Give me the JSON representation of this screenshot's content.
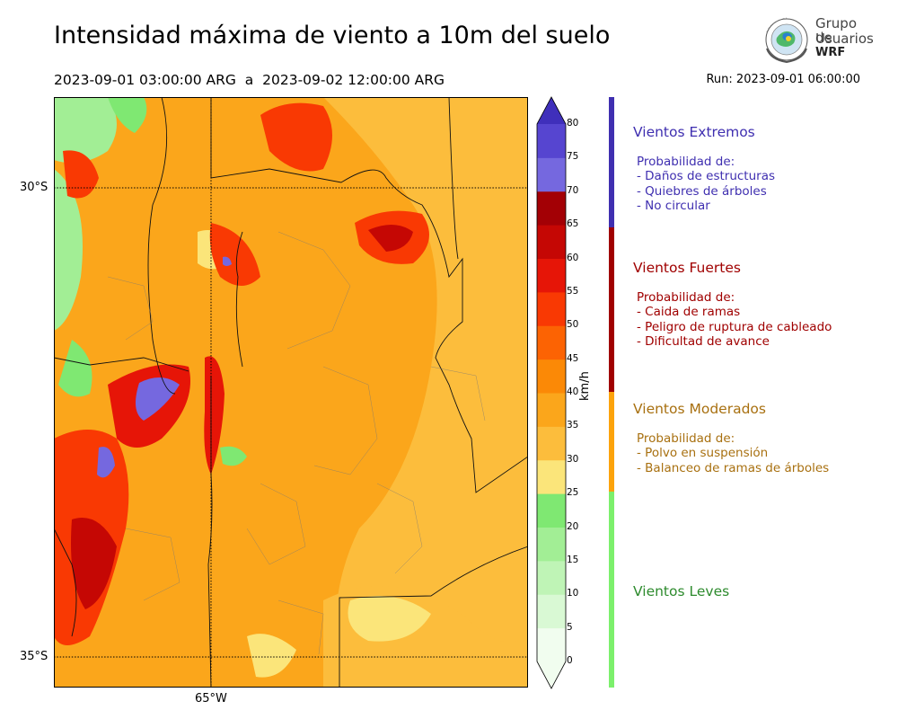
{
  "title": "Intensidad máxima de viento a 10m del suelo",
  "period": "2023-09-01 03:00:00 ARG  a  2023-09-02 12:00:00 ARG",
  "run": "Run: 2023-09-01 06:00:00",
  "logo": {
    "line1": "Grupo de",
    "line2": "Usuarios",
    "line3": "WRF"
  },
  "map": {
    "lat_labels": [
      "30°S",
      "35°S"
    ],
    "lon_labels": [
      "65°W"
    ],
    "region": "Argentina centro (Córdoba, Santiago del Estero, Santa Fe, San Luis, La Rioja, Catamarca)"
  },
  "colorbar": {
    "unit": "km/h",
    "ticks": [
      "80",
      "75",
      "70",
      "65",
      "60",
      "55",
      "50",
      "45",
      "40",
      "35",
      "30",
      "25",
      "20",
      "15",
      "10",
      "5",
      "0"
    ],
    "levels": [
      0,
      5,
      10,
      15,
      20,
      25,
      30,
      35,
      40,
      45,
      50,
      55,
      60,
      65,
      70,
      75,
      80
    ],
    "colors": [
      "#f1fdef",
      "#d9f9d4",
      "#bff4b6",
      "#a2ee95",
      "#7fe872",
      "#fbe57a",
      "#fcbd3c",
      "#fba61b",
      "#fb8906",
      "#fc6303",
      "#f93903",
      "#e61507",
      "#c50704",
      "#a30005",
      "#7568df",
      "#5645d0",
      "#3f2fbb"
    ]
  },
  "categories": [
    {
      "title": "Vientos Extremos",
      "color": "#3f2fb0",
      "desc": [
        "Probabilidad de:",
        "- Daños de estructuras",
        "- Quiebres de árboles",
        "- No circular"
      ]
    },
    {
      "title": "Vientos Fuertes",
      "color": "#a00000",
      "desc": [
        "Probabilidad de:",
        "- Caida de ramas",
        "- Peligro de ruptura de cableado",
        "- Dificultad de avance"
      ]
    },
    {
      "title": "Vientos Moderados",
      "color": "#a87010",
      "bar_color": "#fca30c",
      "desc": [
        "Probabilidad de:",
        "- Polvo en suspensión",
        "- Balanceo de ramas de árboles"
      ]
    },
    {
      "title": "Vientos Leves",
      "color": "#2e8b2e",
      "bar_color": "#7cf06c",
      "desc": []
    }
  ]
}
